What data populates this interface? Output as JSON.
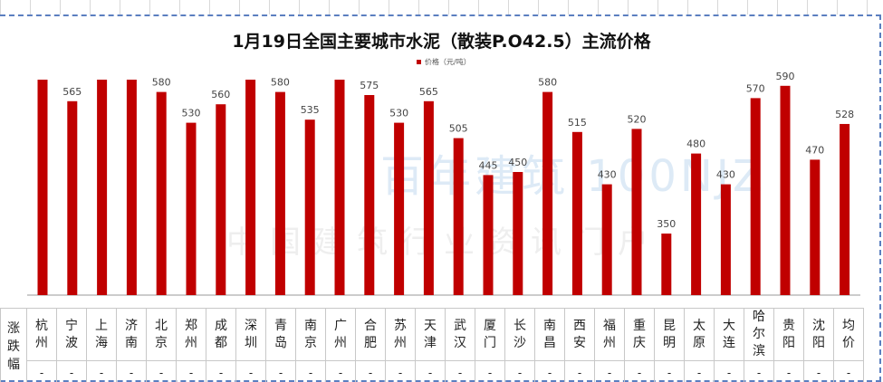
{
  "chart_data": {
    "type": "bar",
    "title": "1月19日全国主要城市水泥（散装P.O42.5）主流价格",
    "legend": "价格（元/吨）",
    "legend_position": "top-right",
    "categories": [
      "杭州",
      "宁波",
      "上海",
      "济南",
      "北京",
      "郑州",
      "成都",
      "深圳",
      "青岛",
      "南京",
      "广州",
      "合肥",
      "苏州",
      "天津",
      "武汉",
      "厦门",
      "长沙",
      "南昌",
      "西安",
      "福州",
      "重庆",
      "昆明",
      "太原",
      "大连",
      "哈尔滨",
      "贵阳",
      "沈阳",
      "均价"
    ],
    "values": [
      600,
      565,
      600,
      600,
      580,
      530,
      560,
      600,
      580,
      535,
      600,
      575,
      530,
      565,
      505,
      445,
      450,
      580,
      515,
      430,
      520,
      350,
      480,
      430,
      570,
      590,
      470,
      528
    ],
    "labels_shown": [
      false,
      true,
      false,
      false,
      true,
      true,
      true,
      false,
      true,
      true,
      false,
      true,
      true,
      true,
      true,
      true,
      true,
      true,
      true,
      true,
      true,
      true,
      true,
      true,
      true,
      true,
      true,
      true
    ],
    "ylim": [
      250,
      600
    ],
    "grid": false,
    "color": "#c00000"
  },
  "table": {
    "row_header": "涨跌幅",
    "changes": [
      "-",
      "-",
      "-",
      "-",
      "-",
      "-",
      "-",
      "-",
      "-",
      "-",
      "-",
      "-",
      "-",
      "-",
      "-",
      "-",
      "-",
      "-",
      "-",
      "-",
      "-",
      "-",
      "-",
      "-",
      "-",
      "-",
      "-",
      "-"
    ]
  },
  "watermark": {
    "brand": "百年建筑 100NJZ",
    "slogan": "中国建筑行业资讯门户"
  }
}
